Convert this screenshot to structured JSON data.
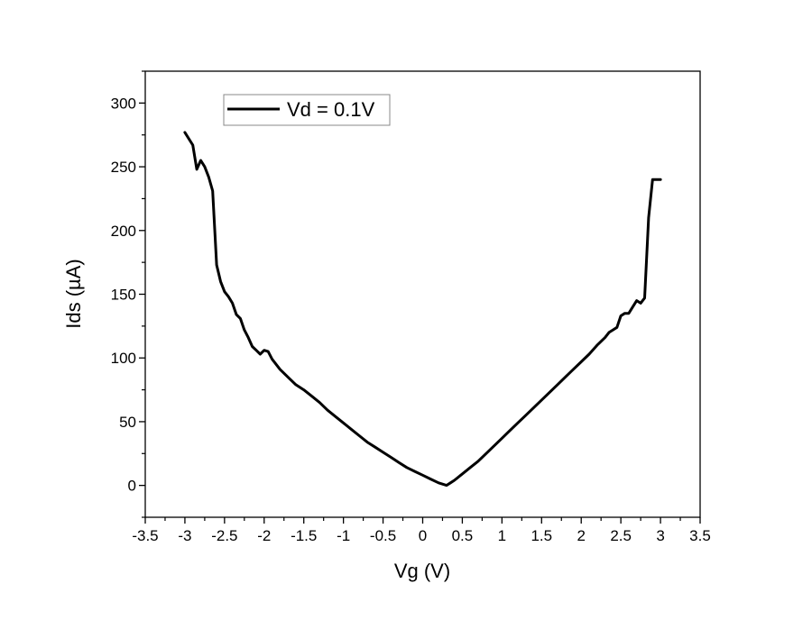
{
  "chart_data": {
    "type": "line",
    "title": "",
    "xlabel": "Vg (V)",
    "ylabel": "Ids (µA)",
    "xlim": [
      -3.5,
      3.5
    ],
    "ylim": [
      -25,
      325
    ],
    "xticks": [
      -3.5,
      -3,
      -2.5,
      -2,
      -1.5,
      -1,
      -0.5,
      0,
      0.5,
      1,
      1.5,
      2,
      2.5,
      3,
      3.5
    ],
    "xtick_labels": [
      "-3.5",
      "-3",
      "-2.5",
      "-2",
      "-1.5",
      "-1",
      "-0.5",
      "0",
      "0.5",
      "1",
      "1.5",
      "2",
      "2.5",
      "3",
      "3.5"
    ],
    "yticks": [
      0,
      50,
      100,
      150,
      200,
      250,
      300
    ],
    "ytick_labels": [
      "0",
      "50",
      "100",
      "150",
      "200",
      "250",
      "300"
    ],
    "grid": false,
    "legend_position": "top-left",
    "line_color": "#000000",
    "series": [
      {
        "name": "Vd = 0.1V",
        "x": [
          -3.0,
          -2.9,
          -2.85,
          -2.8,
          -2.75,
          -2.7,
          -2.65,
          -2.6,
          -2.55,
          -2.5,
          -2.45,
          -2.4,
          -2.35,
          -2.3,
          -2.25,
          -2.2,
          -2.15,
          -2.1,
          -2.05,
          -2.0,
          -1.95,
          -1.9,
          -1.8,
          -1.7,
          -1.6,
          -1.5,
          -1.4,
          -1.3,
          -1.2,
          -1.1,
          -1.0,
          -0.9,
          -0.8,
          -0.7,
          -0.6,
          -0.5,
          -0.4,
          -0.3,
          -0.2,
          -0.1,
          0.0,
          0.1,
          0.2,
          0.3,
          0.35,
          0.4,
          0.5,
          0.6,
          0.7,
          0.8,
          0.9,
          1.0,
          1.1,
          1.2,
          1.3,
          1.4,
          1.5,
          1.6,
          1.7,
          1.8,
          1.9,
          2.0,
          2.1,
          2.2,
          2.25,
          2.3,
          2.35,
          2.4,
          2.45,
          2.5,
          2.55,
          2.6,
          2.65,
          2.7,
          2.75,
          2.8,
          2.85,
          2.9,
          2.95,
          3.0
        ],
        "values": [
          277,
          267,
          248,
          255,
          250,
          242,
          231,
          173,
          160,
          152,
          148,
          143,
          134,
          131,
          122,
          116,
          109,
          106,
          103,
          106,
          105,
          99,
          91,
          85,
          79,
          75,
          70,
          65,
          59,
          54,
          49,
          44,
          39,
          34,
          30,
          26,
          22,
          18,
          14,
          11,
          8,
          5,
          2,
          0,
          2,
          4,
          9,
          14,
          19,
          25,
          31,
          37,
          43,
          49,
          55,
          61,
          67,
          73,
          79,
          85,
          91,
          97,
          103,
          110,
          113,
          116,
          120,
          122,
          124,
          133,
          135,
          135,
          140,
          145,
          143,
          147,
          210,
          240,
          240,
          240
        ]
      }
    ]
  }
}
